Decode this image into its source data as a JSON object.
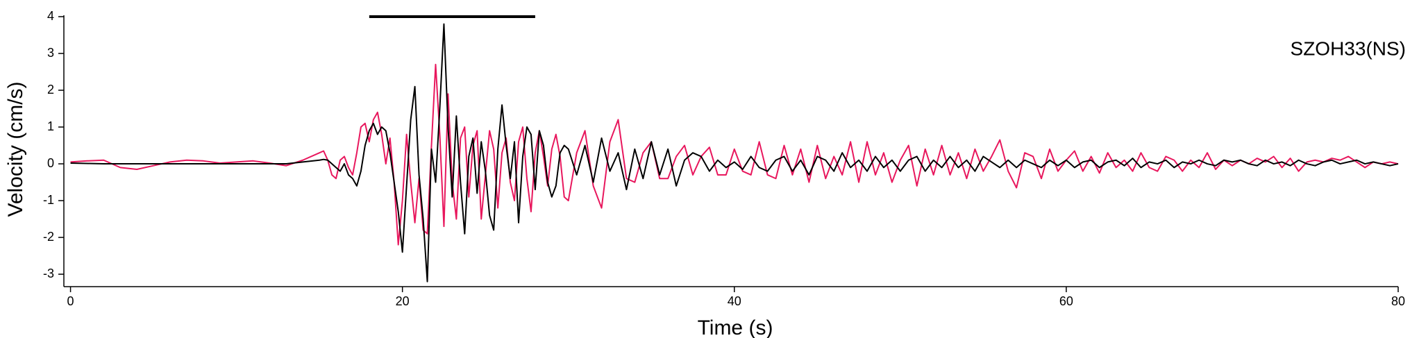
{
  "chart_data": {
    "type": "line",
    "title": "SZOH33(NS)",
    "x_label": "Time (s)",
    "y_label": "Velocity (cm/s)",
    "xlim": [
      -0.4,
      80
    ],
    "xticks": [
      0,
      20,
      40,
      60,
      80
    ],
    "ylim": [
      -3.3,
      4
    ],
    "yticks": [
      -3,
      -2,
      -1,
      0,
      1,
      2,
      3,
      4
    ],
    "annotation_bar": {
      "x": [
        18,
        28
      ],
      "y": 4
    },
    "x": [
      0,
      1,
      2,
      3,
      4,
      5,
      6,
      7,
      8,
      9,
      10,
      11,
      12,
      13,
      14,
      15,
      15.25,
      15.5,
      15.75,
      16,
      16.25,
      16.5,
      16.75,
      17,
      17.25,
      17.5,
      17.75,
      18,
      18.25,
      18.5,
      18.75,
      19,
      19.25,
      19.5,
      19.75,
      20,
      20.25,
      20.5,
      20.75,
      21,
      21.25,
      21.5,
      21.75,
      22,
      22.25,
      22.5,
      22.75,
      23,
      23.25,
      23.5,
      23.75,
      24,
      24.25,
      24.5,
      24.75,
      25,
      25.25,
      25.5,
      25.75,
      26,
      26.25,
      26.5,
      26.75,
      27,
      27.25,
      27.5,
      27.75,
      28,
      28.25,
      28.5,
      28.75,
      29,
      29.25,
      29.5,
      29.75,
      30,
      30.5,
      31,
      31.5,
      32,
      32.5,
      33,
      33.5,
      34,
      34.5,
      35,
      35.5,
      36,
      36.5,
      37,
      37.5,
      38,
      38.5,
      39,
      39.5,
      40,
      40.5,
      41,
      41.5,
      42,
      42.5,
      43,
      43.5,
      44,
      44.5,
      45,
      45.5,
      46,
      46.5,
      47,
      47.5,
      48,
      48.5,
      49,
      49.5,
      50,
      50.5,
      51,
      51.5,
      52,
      52.5,
      53,
      53.5,
      54,
      54.5,
      55,
      55.5,
      56,
      56.5,
      57,
      57.5,
      58,
      58.5,
      59,
      59.5,
      60,
      60.5,
      61,
      61.5,
      62,
      62.5,
      63,
      63.5,
      64,
      64.5,
      65,
      65.5,
      66,
      66.5,
      67,
      67.5,
      68,
      68.5,
      69,
      69.5,
      70,
      70.5,
      71,
      71.5,
      72,
      72.5,
      73,
      73.5,
      74,
      74.5,
      75,
      75.5,
      76,
      76.5,
      77,
      77.5,
      78,
      78.5,
      79,
      79.5,
      80
    ],
    "series": [
      {
        "color": "#e8175d",
        "values": [
          0.05,
          0.08,
          0.1,
          -0.1,
          -0.15,
          -0.05,
          0.05,
          0.1,
          0.08,
          0.02,
          0.05,
          0.08,
          0.02,
          -0.05,
          0.1,
          0.3,
          0.35,
          0.1,
          -0.3,
          -0.4,
          0.1,
          0.2,
          -0.1,
          -0.3,
          0.3,
          1.0,
          1.1,
          0.6,
          1.2,
          1.4,
          0.8,
          0,
          0.7,
          -0.5,
          -2.2,
          -1.0,
          0.8,
          -0.5,
          -1.6,
          -0.4,
          -1.8,
          -1.9,
          0.5,
          2.7,
          0.8,
          -1.7,
          1.9,
          -0.5,
          -1.5,
          0.7,
          1.0,
          -0.9,
          0.5,
          0.9,
          -1.5,
          -0.3,
          0.9,
          0.4,
          -1.2,
          0.3,
          0.7,
          -0.5,
          -1.0,
          0.6,
          1.0,
          -0.4,
          -1.3,
          0.3,
          0.9,
          0.2,
          -0.6,
          0.4,
          0.8,
          0.2,
          -0.9,
          -1.0,
          0.3,
          0.9,
          -0.6,
          -1.2,
          0.6,
          1.2,
          -0.4,
          -0.5,
          0.3,
          0.6,
          -0.4,
          -0.4,
          0.2,
          0.5,
          -0.3,
          0.2,
          0.45,
          -0.3,
          -0.3,
          0.4,
          -0.2,
          -0.3,
          0.6,
          -0.3,
          -0.4,
          0.5,
          -0.3,
          0.4,
          -0.5,
          0.5,
          -0.4,
          0.2,
          -0.3,
          0.6,
          -0.5,
          0.6,
          -0.3,
          0.3,
          -0.5,
          0.1,
          0.5,
          -0.6,
          0.4,
          -0.3,
          0.5,
          -0.3,
          0.3,
          -0.4,
          0.4,
          -0.2,
          0.2,
          0.65,
          -0.2,
          -0.65,
          0.3,
          0.2,
          -0.4,
          0.4,
          -0.2,
          0.1,
          0.35,
          -0.2,
          0.2,
          -0.25,
          0.3,
          -0.1,
          0.1,
          -0.2,
          0.3,
          -0.1,
          -0.2,
          0.2,
          0.1,
          -0.2,
          0.1,
          -0.1,
          0.3,
          -0.15,
          0.1,
          -0.05,
          0.1,
          0,
          0.15,
          0.05,
          0.2,
          -0.1,
          0.15,
          -0.2,
          0.05,
          0.1,
          0.05,
          0.15,
          0.1,
          0.2,
          0.05,
          -0.1,
          0.05,
          0,
          0.05,
          0
        ]
      },
      {
        "color": "#000000",
        "values": [
          0.02,
          0.01,
          0,
          0,
          0,
          0,
          0,
          0,
          0,
          0,
          0,
          0,
          0,
          0,
          0.05,
          0.1,
          0.12,
          0.1,
          0,
          -0.1,
          -0.2,
          0,
          -0.3,
          -0.4,
          -0.6,
          -0.2,
          0.5,
          0.9,
          1.1,
          0.8,
          1.0,
          0.9,
          0.3,
          -0.5,
          -1.3,
          -2.4,
          -0.6,
          1.2,
          2.1,
          -0.3,
          -1.5,
          -3.2,
          0.4,
          -0.5,
          1.5,
          3.8,
          1.0,
          -0.9,
          1.3,
          -0.5,
          -1.9,
          0.2,
          0.7,
          -0.8,
          0.6,
          -0.2,
          -1.4,
          -1.8,
          0.4,
          1.6,
          0.5,
          -0.4,
          0.6,
          -1.6,
          0.2,
          1.0,
          0.8,
          -0.7,
          0.9,
          0.5,
          -0.5,
          -0.9,
          -0.6,
          0.3,
          0.5,
          0.4,
          -0.3,
          0.5,
          -0.5,
          0.7,
          -0.2,
          0.3,
          -0.7,
          0.4,
          -0.4,
          0.6,
          -0.3,
          0.4,
          -0.6,
          0.1,
          0.3,
          0.2,
          -0.2,
          0.1,
          -0.1,
          0.05,
          -0.15,
          0.2,
          -0.1,
          -0.2,
          0.1,
          0.2,
          -0.2,
          0.1,
          -0.3,
          0.2,
          0.1,
          -0.2,
          0.3,
          -0.1,
          0.1,
          -0.2,
          0.2,
          -0.1,
          0.1,
          -0.2,
          0.1,
          0.2,
          -0.2,
          0.1,
          -0.1,
          0.2,
          -0.1,
          0.1,
          -0.2,
          0.2,
          0.05,
          -0.1,
          0.1,
          -0.1,
          0.1,
          0,
          -0.1,
          0.1,
          -0.05,
          0.1,
          -0.1,
          0.05,
          0.1,
          -0.1,
          0.05,
          0.1,
          -0.05,
          0.15,
          -0.1,
          0.05,
          0,
          0.1,
          -0.1,
          0.05,
          0,
          0.1,
          0,
          -0.05,
          0.1,
          0.05,
          0.1,
          0,
          -0.05,
          0.1,
          0,
          0.05,
          -0.05,
          0.1,
          0,
          -0.05,
          0.05,
          0.1,
          0,
          0.05,
          0.1,
          0,
          0.05,
          0,
          -0.05,
          0
        ]
      }
    ]
  }
}
